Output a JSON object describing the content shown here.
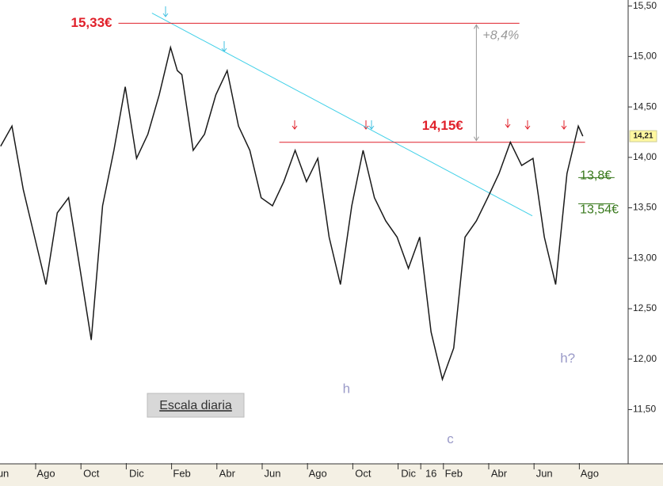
{
  "chart_data": {
    "type": "line",
    "x": [
      0,
      0.5,
      1,
      1.5,
      2,
      2.5,
      3,
      3.5,
      4,
      4.5,
      5,
      5.5,
      6,
      6.5,
      7,
      7.5,
      7.8,
      8,
      8.5,
      9,
      9.5,
      10,
      10.5,
      11,
      11.5,
      12,
      12.5,
      13,
      13.5,
      14,
      14.5,
      15,
      15.5,
      16,
      16.5,
      17,
      17.5,
      18,
      18.5,
      19,
      19.5,
      20,
      20.5,
      21,
      21.5,
      22,
      22.5,
      23,
      23.5,
      24,
      24.5,
      25,
      25.5,
      25.7
    ],
    "series": [
      {
        "color": "#1a1a1a",
        "values": [
          14.11,
          14.31,
          13.68,
          13.21,
          12.74,
          13.45,
          13.6,
          12.9,
          12.19,
          13.52,
          14.07,
          14.7,
          13.99,
          14.23,
          14.62,
          15.09,
          14.86,
          14.82,
          14.07,
          14.23,
          14.62,
          14.86,
          14.31,
          14.07,
          13.6,
          13.52,
          13.76,
          14.07,
          13.76,
          13.99,
          13.21,
          12.74,
          13.52,
          14.07,
          13.6,
          13.37,
          13.21,
          12.9,
          13.21,
          12.27,
          11.8,
          12.11,
          13.21,
          13.37,
          13.6,
          13.84,
          14.15,
          13.92,
          13.99,
          13.21,
          12.74,
          13.84,
          14.31,
          14.21
        ]
      }
    ],
    "xlim": [
      -0.028,
      27.7
    ],
    "ylim": [
      10.97,
      15.56
    ],
    "xticks": [
      {
        "value": 0,
        "label": "Jun"
      },
      {
        "value": 2,
        "label": "Ago"
      },
      {
        "value": 4,
        "label": "Oct"
      },
      {
        "value": 6,
        "label": "Dic"
      },
      {
        "value": 8,
        "label": "Feb"
      },
      {
        "value": 10,
        "label": "Abr"
      },
      {
        "value": 12,
        "label": "Jun"
      },
      {
        "value": 14,
        "label": "Ago"
      },
      {
        "value": 16,
        "label": "Oct"
      },
      {
        "value": 18,
        "label": "Dic"
      },
      {
        "value": 19,
        "label": "16"
      },
      {
        "value": 20,
        "label": "Feb"
      },
      {
        "value": 22,
        "label": "Abr"
      },
      {
        "value": 24,
        "label": "Jun"
      },
      {
        "value": 26,
        "label": "Ago"
      }
    ],
    "yticks": [
      {
        "value": 11.5,
        "label": "11,50"
      },
      {
        "value": 12,
        "label": "12,00"
      },
      {
        "value": 12.5,
        "label": "12,50"
      },
      {
        "value": 13,
        "label": "13,00"
      },
      {
        "value": 13.5,
        "label": "13,50"
      },
      {
        "value": 14,
        "label": "14,00"
      },
      {
        "value": 14.5,
        "label": "14,50"
      },
      {
        "value": 15,
        "label": "15,00"
      },
      {
        "value": 15.5,
        "label": "15,50"
      }
    ],
    "levels": [
      {
        "value": 15.33,
        "label": "15,33€",
        "color": "#e0202a",
        "from": 5.2,
        "to": 22.9
      },
      {
        "value": 14.15,
        "label": "14,15€",
        "color": "#e0202a",
        "from": 12.3,
        "to": 25.8
      },
      {
        "value": 13.8,
        "label": "13,8€",
        "color": "#3a7a1e",
        "from": 25.5,
        "to": 27.1
      },
      {
        "value": 13.54,
        "label": "13,54€",
        "color": "#3a7a1e",
        "from": 25.5,
        "to": 27.1
      }
    ],
    "trendline": {
      "color": "#40d0e8",
      "x": [
        6.68,
        23.47
      ],
      "y": [
        15.43,
        13.42
      ]
    },
    "change": {
      "label": "+8,4%",
      "x": 21.0
    },
    "last_price": {
      "value": 14.21,
      "label": "14,21"
    },
    "annotations": [
      {
        "text": "h",
        "x": 15.1,
        "y": 11.7
      },
      {
        "text": "c",
        "x": 19.7,
        "y": 11.2
      },
      {
        "text": "h?",
        "x": 24.7,
        "y": 12.0
      }
    ],
    "note": "Escala diaria"
  }
}
